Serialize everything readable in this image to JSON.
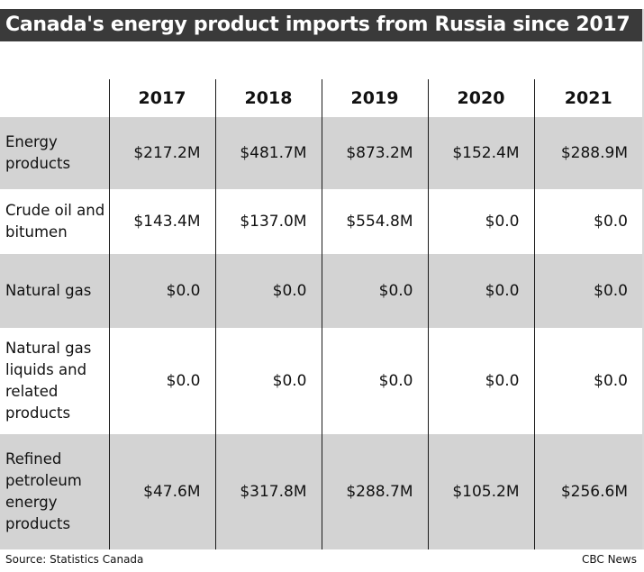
{
  "title": "Canada's energy product imports from Russia since 2017",
  "source": "Source: Statistics Canada",
  "credit": "CBC News",
  "colors": {
    "title_bg": "#3a3a3a",
    "row_shade": "#d3d3d3"
  },
  "chart_data": {
    "type": "table",
    "title": "Canada's energy product imports from Russia since 2017",
    "columns": [
      "2017",
      "2018",
      "2019",
      "2020",
      "2021"
    ],
    "rows": [
      {
        "label": "Energy products",
        "values": [
          "$217.2M",
          "$481.7M",
          "$873.2M",
          "$152.4M",
          "$288.9M"
        ]
      },
      {
        "label": "Crude oil and bitumen",
        "values": [
          "$143.4M",
          "$137.0M",
          "$554.8M",
          "$0.0",
          "$0.0"
        ]
      },
      {
        "label": "Natural gas",
        "values": [
          "$0.0",
          "$0.0",
          "$0.0",
          "$0.0",
          "$0.0"
        ]
      },
      {
        "label": "Natural gas liquids and related products",
        "values": [
          "$0.0",
          "$0.0",
          "$0.0",
          "$0.0",
          "$0.0"
        ]
      },
      {
        "label": "Refined petroleum energy products",
        "values": [
          "$47.6M",
          "$317.8M",
          "$288.7M",
          "$105.2M",
          "$256.6M"
        ]
      }
    ]
  }
}
